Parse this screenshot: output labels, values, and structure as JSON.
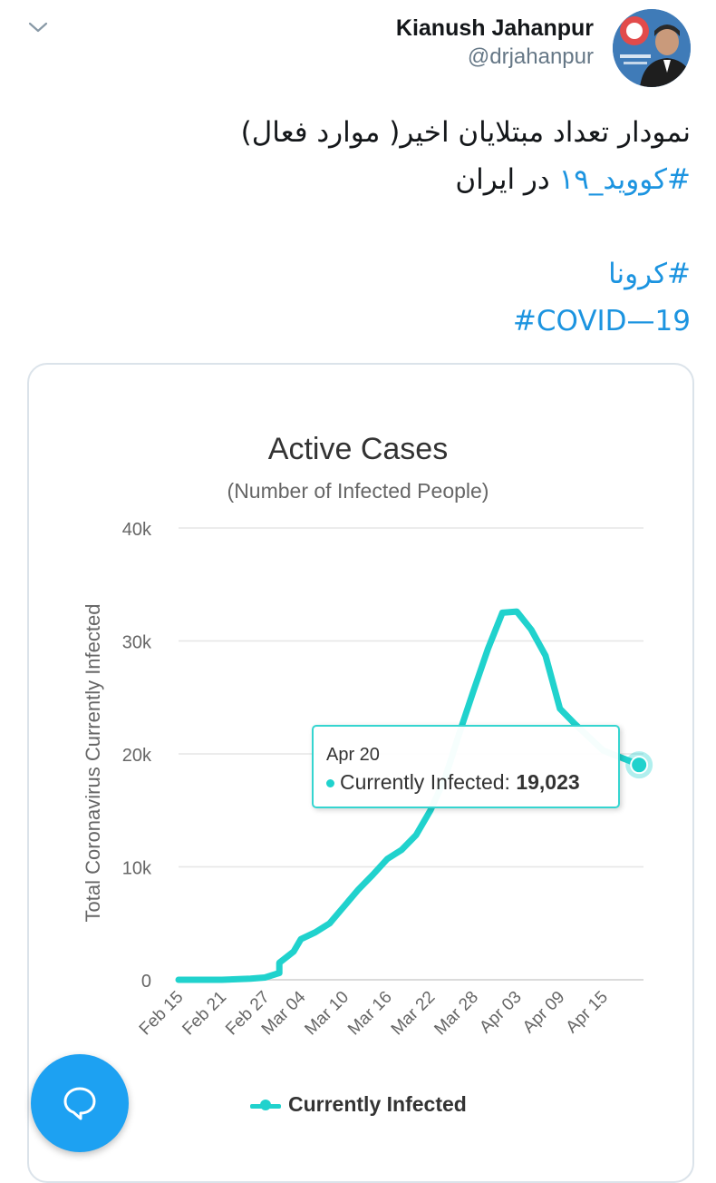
{
  "tweet": {
    "author_name": "Kianush Jahanpur",
    "author_handle": "@drjahanpur",
    "text_line1": "نمودار تعداد مبتلایان اخیر( موارد فعال)",
    "hashtag_covid_fa": "#کووید_۱۹",
    "text_line2_rest": " در ایران",
    "hashtag_corona_fa": "#کرونا",
    "hashtag_covid_en": "#COVID—19",
    "link_color": "#1c94e0"
  },
  "icons": {
    "menu": "chevron-down-icon",
    "reply_fab": "speech-bubble-icon"
  },
  "chart_data": {
    "type": "line",
    "title": "Active Cases",
    "subtitle": "(Number of Infected People)",
    "ylabel": "Total Coronavirus Currently Infected",
    "xlabel": "",
    "ylim": [
      0,
      40000
    ],
    "yticks": [
      0,
      10000,
      20000,
      30000,
      40000
    ],
    "ytick_labels": [
      "0",
      "10k",
      "20k",
      "30k",
      "40k"
    ],
    "xtick_labels": [
      "Feb 15",
      "Feb 21",
      "Feb 27",
      "Mar 04",
      "Mar 10",
      "Mar 16",
      "Mar 22",
      "Mar 28",
      "Apr 03",
      "Apr 09",
      "Apr 15"
    ],
    "grid": true,
    "legend_position": "bottom",
    "series_color": "#20d2cd",
    "series": [
      {
        "name": "Currently Infected",
        "x": [
          "Feb 15",
          "Feb 19",
          "Feb 21",
          "Feb 23",
          "Feb 25",
          "Feb 27",
          "Feb 29",
          "Mar 01",
          "Mar 03",
          "Mar 04",
          "Mar 06",
          "Mar 08",
          "Mar 10",
          "Mar 12",
          "Mar 14",
          "Mar 16",
          "Mar 18",
          "Mar 20",
          "Mar 22",
          "Mar 24",
          "Mar 26",
          "Mar 28",
          "Mar 30",
          "Apr 01",
          "Apr 03",
          "Apr 05",
          "Apr 07",
          "Apr 09",
          "Apr 11",
          "Apr 13",
          "Apr 15",
          "Apr 17",
          "Apr 19",
          "Apr 20"
        ],
        "values": [
          0,
          0,
          0,
          50,
          100,
          200,
          600,
          1500,
          2500,
          3600,
          4200,
          5000,
          6500,
          8000,
          9300,
          10700,
          11500,
          12800,
          15000,
          17800,
          21800,
          25600,
          29300,
          32500,
          32600,
          31000,
          28700,
          24000,
          22700,
          21500,
          20300,
          19800,
          19300,
          19023
        ]
      }
    ],
    "tooltip": {
      "date": "Apr 20",
      "series_label": "Currently Infected:",
      "value_text": "19,023"
    }
  }
}
